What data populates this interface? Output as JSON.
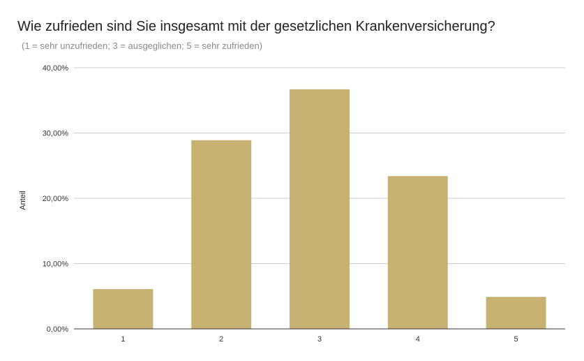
{
  "chart_data": {
    "type": "bar",
    "title": "Wie zufrieden sind Sie insgesamt mit der gesetzlichen Krankenversicherung?",
    "subtitle": "(1 = sehr unzufrieden; 3 = ausgeglichen; 5 = sehr zufrieden)",
    "xlabel": "",
    "ylabel": "Anteil",
    "categories": [
      "1",
      "2",
      "3",
      "4",
      "5"
    ],
    "values": [
      6.1,
      28.9,
      36.7,
      23.4,
      4.9
    ],
    "ylim": [
      0,
      40
    ],
    "yticks": [
      0,
      10,
      20,
      30,
      40
    ],
    "ytick_labels": [
      "0,00%",
      "10,00%",
      "20,00%",
      "30,00%",
      "40,00%"
    ],
    "bar_color": "#c8b273",
    "grid": true,
    "legend": "none"
  }
}
